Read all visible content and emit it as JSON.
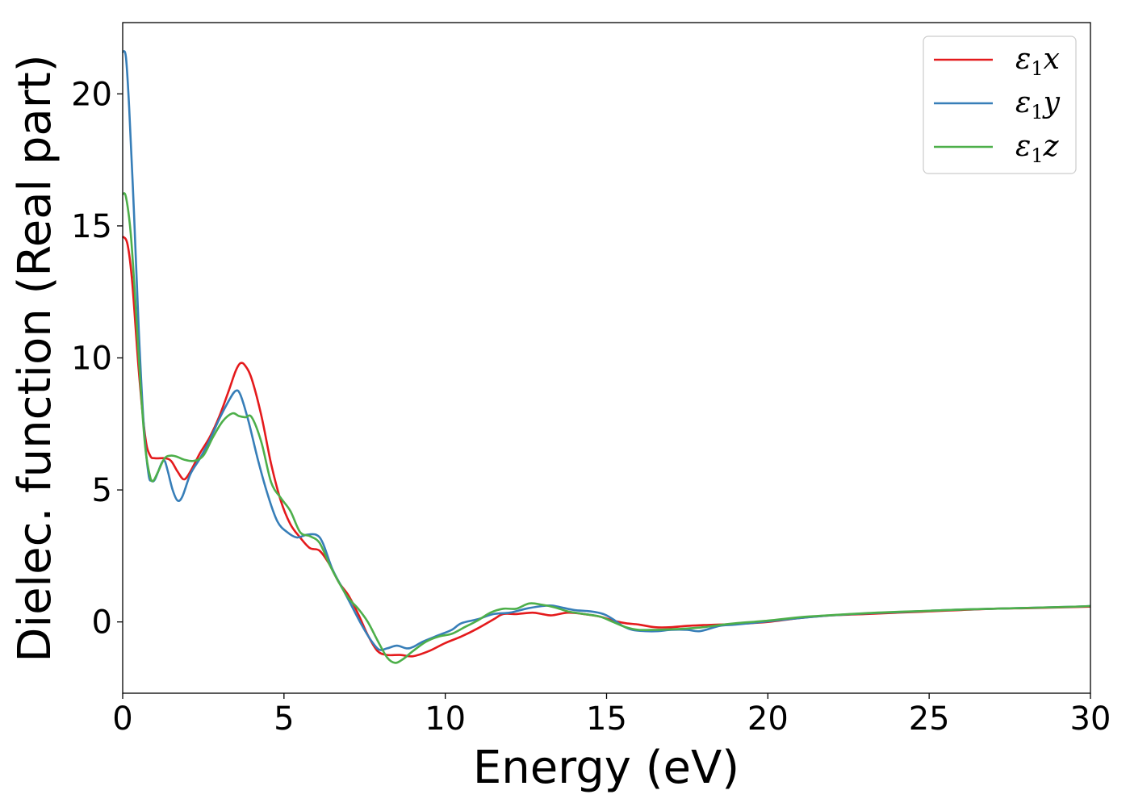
{
  "chart_data": {
    "type": "line",
    "xlabel": "Energy (eV)",
    "ylabel": "Dielec. function (Real part)",
    "xlim": [
      0,
      30
    ],
    "ylim": [
      -2.7,
      22.7
    ],
    "xticks": [
      0,
      5,
      10,
      15,
      20,
      25,
      30
    ],
    "xtick_labels": [
      "0",
      "5",
      "10",
      "15",
      "20",
      "25",
      "30"
    ],
    "yticks": [
      0,
      5,
      10,
      15,
      20
    ],
    "ytick_labels": [
      "0",
      "5",
      "10",
      "15",
      "20"
    ],
    "grid": false,
    "legend_position": "top-right",
    "series": [
      {
        "name": "ε1x",
        "legend": {
          "base": "ε",
          "sub": "1",
          "suffix": "x"
        },
        "color": "#e41a1c",
        "points": [
          [
            0,
            14.6
          ],
          [
            0.15,
            14.3
          ],
          [
            0.3,
            12.8
          ],
          [
            0.5,
            9.5
          ],
          [
            0.7,
            7.0
          ],
          [
            0.85,
            6.3
          ],
          [
            1.0,
            6.2
          ],
          [
            1.3,
            6.2
          ],
          [
            1.5,
            6.1
          ],
          [
            1.7,
            5.7
          ],
          [
            1.9,
            5.4
          ],
          [
            2.1,
            5.7
          ],
          [
            2.4,
            6.4
          ],
          [
            2.7,
            7.0
          ],
          [
            3.0,
            7.8
          ],
          [
            3.3,
            8.8
          ],
          [
            3.5,
            9.5
          ],
          [
            3.65,
            9.8
          ],
          [
            3.8,
            9.7
          ],
          [
            4.0,
            9.2
          ],
          [
            4.3,
            7.8
          ],
          [
            4.6,
            6.0
          ],
          [
            4.9,
            4.6
          ],
          [
            5.2,
            3.7
          ],
          [
            5.5,
            3.2
          ],
          [
            5.8,
            2.8
          ],
          [
            6.1,
            2.7
          ],
          [
            6.4,
            2.2
          ],
          [
            6.7,
            1.5
          ],
          [
            7.0,
            1.0
          ],
          [
            7.3,
            0.3
          ],
          [
            7.6,
            -0.5
          ],
          [
            7.9,
            -1.1
          ],
          [
            8.2,
            -1.25
          ],
          [
            8.6,
            -1.25
          ],
          [
            9.0,
            -1.3
          ],
          [
            9.5,
            -1.1
          ],
          [
            10.0,
            -0.8
          ],
          [
            10.5,
            -0.55
          ],
          [
            11.0,
            -0.25
          ],
          [
            11.5,
            0.1
          ],
          [
            11.8,
            0.3
          ],
          [
            12.2,
            0.3
          ],
          [
            12.7,
            0.35
          ],
          [
            13.0,
            0.3
          ],
          [
            13.3,
            0.25
          ],
          [
            13.8,
            0.35
          ],
          [
            14.3,
            0.3
          ],
          [
            14.8,
            0.2
          ],
          [
            15.2,
            0.05
          ],
          [
            15.6,
            -0.05
          ],
          [
            16.0,
            -0.1
          ],
          [
            16.5,
            -0.2
          ],
          [
            17.0,
            -0.2
          ],
          [
            17.5,
            -0.15
          ],
          [
            18.0,
            -0.12
          ],
          [
            18.5,
            -0.1
          ],
          [
            19.0,
            -0.08
          ],
          [
            20.0,
            0.0
          ],
          [
            21.0,
            0.15
          ],
          [
            22.0,
            0.25
          ],
          [
            23.0,
            0.3
          ],
          [
            24.0,
            0.35
          ],
          [
            25.0,
            0.4
          ],
          [
            26.0,
            0.45
          ],
          [
            27.0,
            0.5
          ],
          [
            28.0,
            0.52
          ],
          [
            29.0,
            0.55
          ],
          [
            30.0,
            0.58
          ]
        ]
      },
      {
        "name": "ε1y",
        "legend": {
          "base": "ε",
          "sub": "1",
          "suffix": "y"
        },
        "color": "#377eb8",
        "points": [
          [
            0,
            21.6
          ],
          [
            0.1,
            21.4
          ],
          [
            0.2,
            19.5
          ],
          [
            0.35,
            15.5
          ],
          [
            0.5,
            11.0
          ],
          [
            0.65,
            7.5
          ],
          [
            0.8,
            5.6
          ],
          [
            0.9,
            5.35
          ],
          [
            1.0,
            5.4
          ],
          [
            1.2,
            6.0
          ],
          [
            1.3,
            6.1
          ],
          [
            1.4,
            5.7
          ],
          [
            1.55,
            5.0
          ],
          [
            1.7,
            4.6
          ],
          [
            1.85,
            4.75
          ],
          [
            2.1,
            5.6
          ],
          [
            2.4,
            6.2
          ],
          [
            2.7,
            6.9
          ],
          [
            3.0,
            7.7
          ],
          [
            3.3,
            8.4
          ],
          [
            3.5,
            8.75
          ],
          [
            3.65,
            8.6
          ],
          [
            3.9,
            7.6
          ],
          [
            4.2,
            6.1
          ],
          [
            4.5,
            4.8
          ],
          [
            4.8,
            3.8
          ],
          [
            5.1,
            3.4
          ],
          [
            5.4,
            3.2
          ],
          [
            5.7,
            3.3
          ],
          [
            6.0,
            3.3
          ],
          [
            6.2,
            3.0
          ],
          [
            6.5,
            2.0
          ],
          [
            6.8,
            1.3
          ],
          [
            7.1,
            0.6
          ],
          [
            7.4,
            -0.1
          ],
          [
            7.7,
            -0.7
          ],
          [
            7.95,
            -1.05
          ],
          [
            8.2,
            -1.0
          ],
          [
            8.5,
            -0.9
          ],
          [
            8.8,
            -1.0
          ],
          [
            9.0,
            -0.95
          ],
          [
            9.3,
            -0.75
          ],
          [
            9.8,
            -0.5
          ],
          [
            10.2,
            -0.3
          ],
          [
            10.5,
            -0.05
          ],
          [
            11.0,
            0.1
          ],
          [
            11.5,
            0.3
          ],
          [
            12.0,
            0.35
          ],
          [
            12.5,
            0.5
          ],
          [
            13.0,
            0.6
          ],
          [
            13.3,
            0.62
          ],
          [
            13.6,
            0.55
          ],
          [
            14.0,
            0.45
          ],
          [
            14.5,
            0.4
          ],
          [
            14.9,
            0.3
          ],
          [
            15.2,
            0.1
          ],
          [
            15.5,
            -0.15
          ],
          [
            15.8,
            -0.3
          ],
          [
            16.2,
            -0.35
          ],
          [
            16.6,
            -0.35
          ],
          [
            17.0,
            -0.3
          ],
          [
            17.5,
            -0.3
          ],
          [
            17.9,
            -0.35
          ],
          [
            18.5,
            -0.15
          ],
          [
            19.0,
            -0.1
          ],
          [
            20.0,
            0.02
          ],
          [
            21.0,
            0.15
          ],
          [
            22.0,
            0.25
          ],
          [
            23.0,
            0.32
          ],
          [
            24.0,
            0.37
          ],
          [
            25.0,
            0.42
          ],
          [
            26.0,
            0.47
          ],
          [
            27.0,
            0.5
          ],
          [
            28.0,
            0.53
          ],
          [
            29.0,
            0.56
          ],
          [
            30.0,
            0.6
          ]
        ]
      },
      {
        "name": "ε1z",
        "legend": {
          "base": "ε",
          "sub": "1",
          "suffix": "z"
        },
        "color": "#4daf4a",
        "points": [
          [
            0,
            16.2
          ],
          [
            0.1,
            16.1
          ],
          [
            0.25,
            14.7
          ],
          [
            0.4,
            12.0
          ],
          [
            0.55,
            9.0
          ],
          [
            0.7,
            6.6
          ],
          [
            0.85,
            5.5
          ],
          [
            0.95,
            5.35
          ],
          [
            1.1,
            5.7
          ],
          [
            1.3,
            6.2
          ],
          [
            1.5,
            6.3
          ],
          [
            1.7,
            6.25
          ],
          [
            1.9,
            6.15
          ],
          [
            2.2,
            6.1
          ],
          [
            2.5,
            6.3
          ],
          [
            2.8,
            7.0
          ],
          [
            3.1,
            7.6
          ],
          [
            3.4,
            7.9
          ],
          [
            3.6,
            7.8
          ],
          [
            3.8,
            7.75
          ],
          [
            4.0,
            7.75
          ],
          [
            4.3,
            6.8
          ],
          [
            4.6,
            5.3
          ],
          [
            4.9,
            4.7
          ],
          [
            5.2,
            4.2
          ],
          [
            5.5,
            3.4
          ],
          [
            5.8,
            3.25
          ],
          [
            6.1,
            3.0
          ],
          [
            6.4,
            2.2
          ],
          [
            6.7,
            1.5
          ],
          [
            7.0,
            0.9
          ],
          [
            7.3,
            0.5
          ],
          [
            7.6,
            0.0
          ],
          [
            7.9,
            -0.7
          ],
          [
            8.2,
            -1.35
          ],
          [
            8.45,
            -1.55
          ],
          [
            8.7,
            -1.4
          ],
          [
            9.0,
            -1.1
          ],
          [
            9.4,
            -0.75
          ],
          [
            9.8,
            -0.55
          ],
          [
            10.2,
            -0.45
          ],
          [
            10.6,
            -0.2
          ],
          [
            11.0,
            0.05
          ],
          [
            11.4,
            0.35
          ],
          [
            11.8,
            0.5
          ],
          [
            12.2,
            0.5
          ],
          [
            12.6,
            0.7
          ],
          [
            13.0,
            0.65
          ],
          [
            13.4,
            0.55
          ],
          [
            13.8,
            0.4
          ],
          [
            14.3,
            0.3
          ],
          [
            14.8,
            0.2
          ],
          [
            15.2,
            0.0
          ],
          [
            15.6,
            -0.2
          ],
          [
            16.0,
            -0.3
          ],
          [
            16.5,
            -0.3
          ],
          [
            17.0,
            -0.28
          ],
          [
            17.5,
            -0.25
          ],
          [
            18.0,
            -0.2
          ],
          [
            18.5,
            -0.12
          ],
          [
            19.0,
            -0.05
          ],
          [
            20.0,
            0.05
          ],
          [
            21.0,
            0.18
          ],
          [
            22.0,
            0.26
          ],
          [
            23.0,
            0.33
          ],
          [
            24.0,
            0.38
          ],
          [
            25.0,
            0.42
          ],
          [
            26.0,
            0.47
          ],
          [
            27.0,
            0.5
          ],
          [
            28.0,
            0.53
          ],
          [
            29.0,
            0.56
          ],
          [
            30.0,
            0.6
          ]
        ]
      }
    ]
  }
}
